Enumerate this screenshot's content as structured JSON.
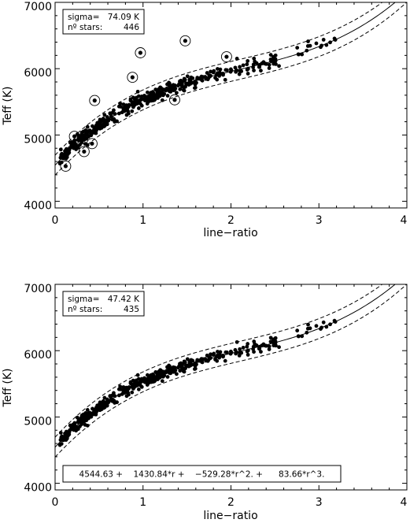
{
  "chart_data": [
    {
      "type": "scatter",
      "xlabel": "line−ratio",
      "ylabel": "Teff (K)",
      "xlim": [
        0,
        4
      ],
      "ylim": [
        3900,
        7000
      ],
      "x_ticks": [
        "0",
        "1",
        "2",
        "3",
        "4"
      ],
      "y_ticks": [
        "4000",
        "5000",
        "6000",
        "7000"
      ],
      "stats_box": {
        "sigma_label": "sigma=",
        "sigma_value": "74.09 K",
        "nstars_label": "nº stars:",
        "nstars_value": "446"
      },
      "fit_coefficients": [
        4544.63,
        1430.84,
        -529.28,
        83.66
      ],
      "band_halfwidth_K": 150,
      "n_stars": 446,
      "outliers": [
        {
          "x": 0.12,
          "y": 4530
        },
        {
          "x": 0.22,
          "y": 4980
        },
        {
          "x": 0.33,
          "y": 4750
        },
        {
          "x": 0.42,
          "y": 4870
        },
        {
          "x": 0.45,
          "y": 5520
        },
        {
          "x": 0.88,
          "y": 5870
        },
        {
          "x": 0.97,
          "y": 6240
        },
        {
          "x": 1.36,
          "y": 5530
        },
        {
          "x": 1.48,
          "y": 6420
        },
        {
          "x": 1.95,
          "y": 6180
        }
      ]
    },
    {
      "type": "scatter",
      "xlabel": "line−ratio",
      "ylabel": "Teff (K)",
      "xlim": [
        0,
        4
      ],
      "ylim": [
        3900,
        7000
      ],
      "x_ticks": [
        "0",
        "1",
        "2",
        "3",
        "4"
      ],
      "y_ticks": [
        "4000",
        "5000",
        "6000",
        "7000"
      ],
      "stats_box": {
        "sigma_label": "sigma=",
        "sigma_value": "47.42 K",
        "nstars_label": "nº stars:",
        "nstars_value": "435"
      },
      "fit_formula": "4544.63 +    1430.84*r +    −529.28*r^2. +      83.66*r^3.",
      "fit_coefficients": [
        4544.63,
        1430.84,
        -529.28,
        83.66
      ],
      "band_halfwidth_K": 150,
      "n_stars": 435
    }
  ]
}
